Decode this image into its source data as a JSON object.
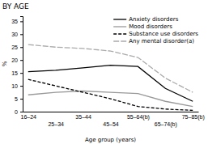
{
  "chart_data": {
    "type": "line",
    "title": "BY AGE",
    "x_label": "Age group (years)",
    "y_label": "%",
    "categories": [
      "16–24",
      "25–34",
      "35–44",
      "45–54",
      "55–64(b)",
      "65–74(b)",
      "75–85(b)"
    ],
    "series": [
      {
        "name": "Anxiety disorders",
        "color": "#000000",
        "line_style": "solid",
        "values": [
          15.5,
          16.0,
          17.0,
          18.0,
          17.5,
          9.0,
          4.0
        ]
      },
      {
        "name": "Mood disorders",
        "color": "#999999",
        "line_style": "solid",
        "values": [
          6.5,
          7.5,
          8.0,
          7.5,
          7.0,
          4.0,
          2.0
        ]
      },
      {
        "name": "Substance use disorders",
        "color": "#000000",
        "line_style": "dashed",
        "values": [
          12.5,
          10.0,
          7.5,
          5.0,
          2.0,
          1.0,
          0.5
        ]
      },
      {
        "name": "Any mental disorder(a)",
        "color": "#aaaaaa",
        "line_style": "longdash",
        "values": [
          26.0,
          25.0,
          24.5,
          23.5,
          21.0,
          13.0,
          7.5
        ]
      }
    ],
    "ylim": [
      0,
      37
    ],
    "yticks": [
      0,
      5,
      10,
      15,
      20,
      25,
      30,
      35
    ],
    "grid": false,
    "legend": "upper right"
  }
}
